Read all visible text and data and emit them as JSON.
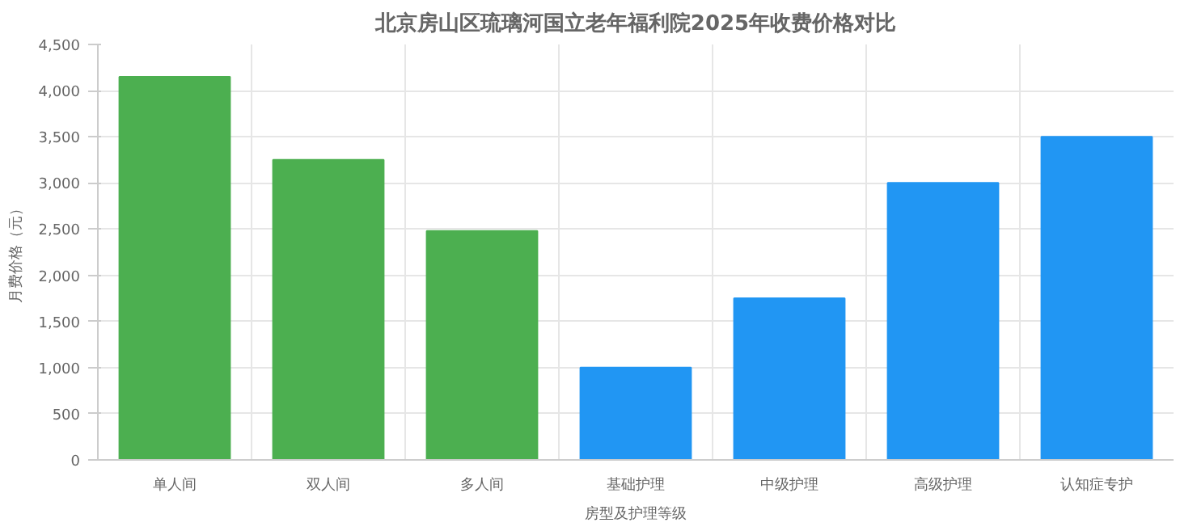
{
  "chart_data": {
    "type": "bar",
    "title": "北京房山区琉璃河国立老年福利院2025年收费价格对比",
    "xlabel": "房型及护理等级",
    "ylabel": "月费价格（元）",
    "categories": [
      "单人间",
      "双人间",
      "多人间",
      "基础护理",
      "中级护理",
      "高级护理",
      "认知症专护"
    ],
    "values": [
      4150,
      3250,
      2480,
      1000,
      1750,
      3000,
      3500
    ],
    "colors": [
      "#4caf50",
      "#4caf50",
      "#4caf50",
      "#2196f3",
      "#2196f3",
      "#2196f3",
      "#2196f3"
    ],
    "ylim": [
      0,
      4500
    ],
    "yticks": [
      0,
      {
        "value": 500,
        "label": "500"
      },
      {
        "value": 1000,
        "label": "1,000"
      },
      {
        "value": 1500,
        "label": "1,500"
      },
      {
        "value": 2000,
        "label": "2,000"
      },
      {
        "value": 2500,
        "label": "2,500"
      },
      {
        "value": 3000,
        "label": "3,000"
      },
      {
        "value": 3500,
        "label": "3,500"
      },
      {
        "value": 4000,
        "label": "4,000"
      },
      {
        "value": 4500,
        "label": "4,500"
      }
    ],
    "grid": true
  }
}
